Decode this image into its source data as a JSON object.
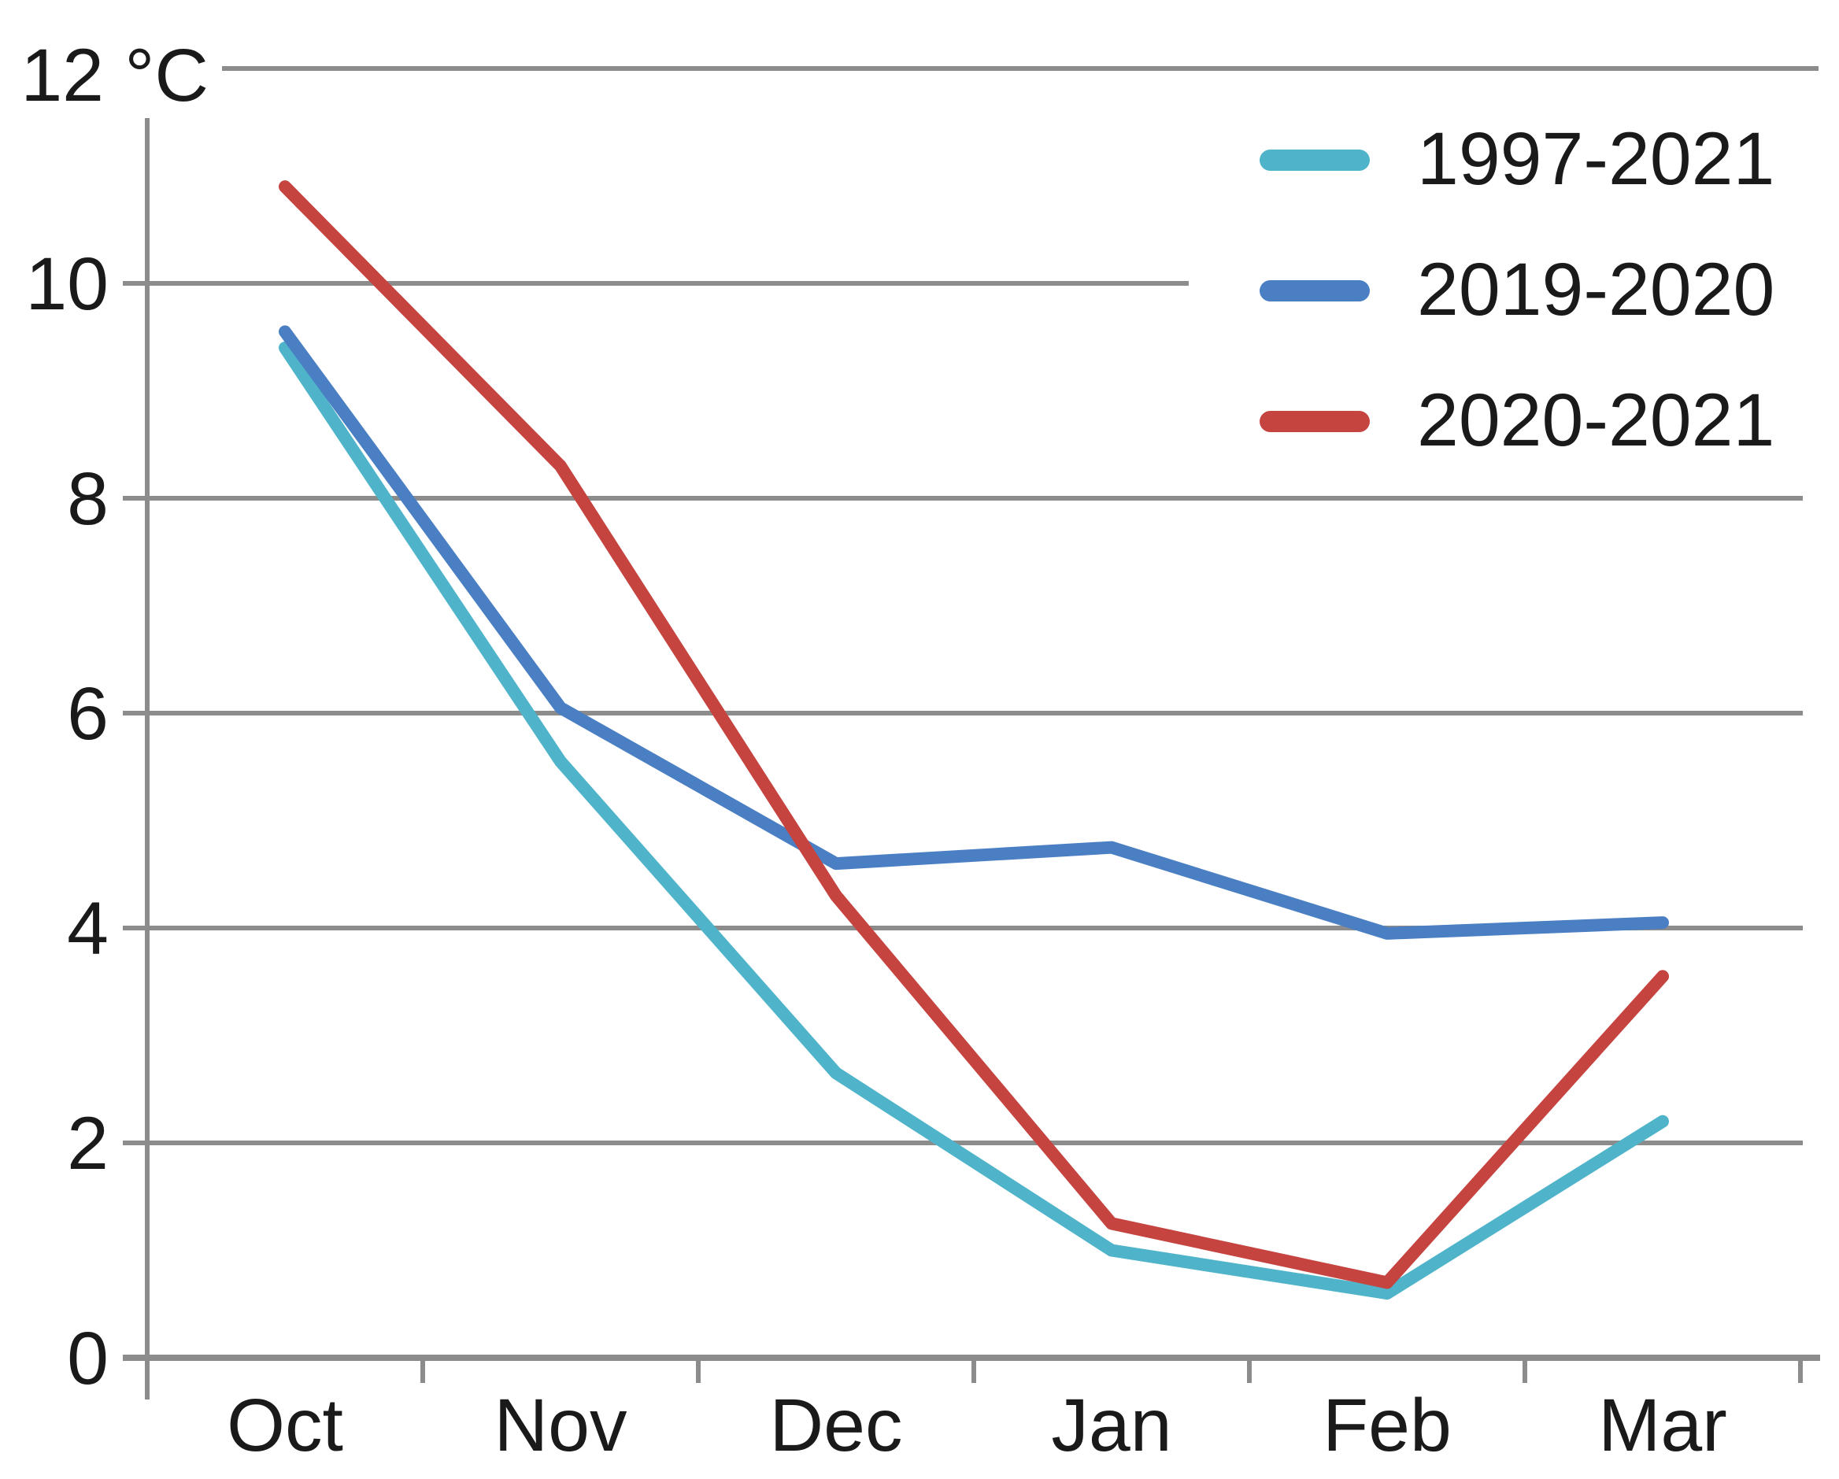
{
  "chart_data": {
    "type": "line",
    "title": "",
    "categories": [
      "Oct",
      "Nov",
      "Dec",
      "Jan",
      "Feb",
      "Mar"
    ],
    "series": [
      {
        "name": "1997-2021",
        "color": "#4FB4CA",
        "values": [
          9.4,
          5.55,
          2.65,
          1.0,
          0.6,
          2.2
        ]
      },
      {
        "name": "2019-2020",
        "color": "#4A7FC3",
        "values": [
          9.55,
          6.05,
          4.6,
          4.75,
          3.95,
          4.05
        ]
      },
      {
        "name": "2020-2021",
        "color": "#C54440",
        "values": [
          10.9,
          8.3,
          4.3,
          1.25,
          0.7,
          3.55
        ]
      }
    ],
    "y_axis": {
      "top_label": "12 °C",
      "unit": "°C",
      "ticks": [
        "0",
        "2",
        "4",
        "6",
        "8",
        "10"
      ],
      "tick_values": [
        0,
        2,
        4,
        6,
        8,
        10
      ],
      "ylim": [
        0,
        12
      ],
      "tick_step": 2
    },
    "x_axis": {
      "labels": [
        "Oct",
        "Nov",
        "Dec",
        "Jan",
        "Feb",
        "Mar"
      ]
    },
    "legend": {
      "position": "top-right",
      "entries": [
        "1997-2021",
        "2019-2020",
        "2020-2021"
      ]
    },
    "grid": {
      "show": true,
      "color": "#8C8C8C"
    },
    "text_color": "#1A1A1A",
    "background": "#FFFFFF",
    "line_width": 16
  }
}
